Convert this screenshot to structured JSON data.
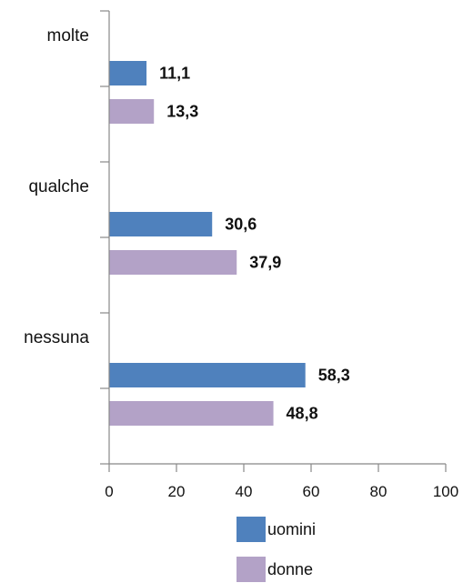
{
  "chart_data": {
    "type": "bar",
    "orientation": "horizontal",
    "categories": [
      "molte",
      "qualche",
      "nessuna"
    ],
    "series": [
      {
        "name": "uomini",
        "values": [
          11.1,
          30.6,
          58.3
        ],
        "value_labels": [
          "11,1",
          "30,6",
          "58,3"
        ],
        "color": "#4f81bd"
      },
      {
        "name": "donne",
        "values": [
          13.3,
          37.9,
          48.8
        ],
        "value_labels": [
          "13,3",
          "37,9",
          "48,8"
        ],
        "color": "#b3a2c7"
      }
    ],
    "xlim": [
      0,
      100
    ],
    "xticks": [
      0,
      20,
      40,
      60,
      80,
      100
    ],
    "title": "",
    "xlabel": "",
    "ylabel": "",
    "grid": false,
    "legend_position": "bottom"
  }
}
